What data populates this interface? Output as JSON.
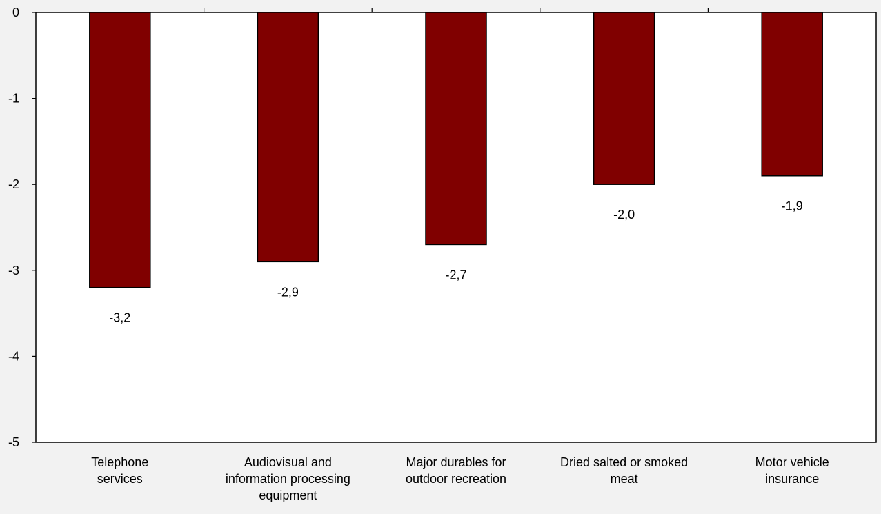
{
  "chart_data": {
    "type": "bar",
    "categories": [
      [
        "Telephone",
        "services"
      ],
      [
        "Audiovisual and",
        "information processing",
        "equipment"
      ],
      [
        "Major durables for",
        "outdoor recreation"
      ],
      [
        "Dried salted or smoked",
        "meat"
      ],
      [
        "Motor vehicle",
        "insurance"
      ]
    ],
    "values": [
      -3.2,
      -2.9,
      -2.7,
      -2.0,
      -1.9
    ],
    "data_labels": [
      "-3,2",
      "-2,9",
      "-2,7",
      "-2,0",
      "-1,9"
    ],
    "y_ticks": [
      0,
      -1,
      -2,
      -3,
      -4,
      -5
    ],
    "y_tick_labels": [
      "0",
      "-1",
      "-2",
      "-3",
      "-4",
      "-5"
    ],
    "ylim": [
      -5,
      0
    ],
    "title": "",
    "xlabel": "",
    "ylabel": "",
    "grid": false,
    "legend": "none",
    "colors": {
      "bar_fill": "#800000",
      "bar_stroke": "#000000",
      "plot_bg": "#ffffff",
      "page_bg": "#f2f2f2"
    }
  }
}
